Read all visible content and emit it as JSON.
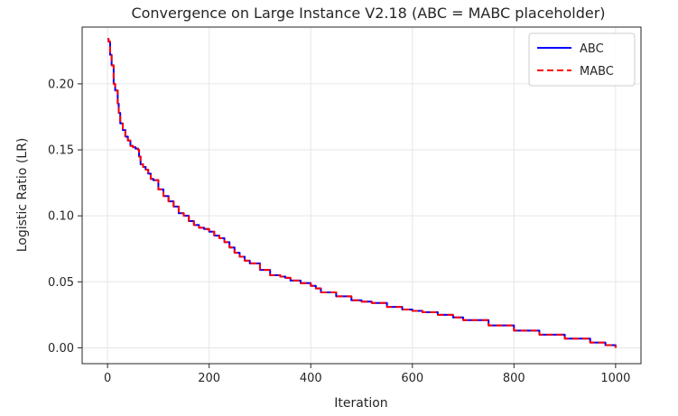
{
  "chart_data": {
    "type": "line",
    "title": "Convergence on Large Instance V2.18 (ABC = MABC placeholder)",
    "xlabel": "Iteration",
    "ylabel": "Logistic Ratio (LR)",
    "xlim": [
      -50,
      1050
    ],
    "ylim": [
      -0.012,
      0.243
    ],
    "xticks": [
      0,
      200,
      400,
      600,
      800,
      1000
    ],
    "yticks": [
      0.0,
      0.05,
      0.1,
      0.15,
      0.2
    ],
    "xtick_labels": [
      "0",
      "200",
      "400",
      "600",
      "800",
      "1000"
    ],
    "ytick_labels": [
      "0.00",
      "0.05",
      "0.10",
      "0.15",
      "0.20"
    ],
    "grid": true,
    "legend_position": "top-right",
    "series": [
      {
        "name": "ABC",
        "color": "#0000ff",
        "dash": "solid",
        "x": [
          0,
          2,
          5,
          8,
          12,
          15,
          20,
          22,
          25,
          30,
          35,
          40,
          45,
          50,
          55,
          60,
          62,
          65,
          70,
          75,
          80,
          85,
          90,
          95,
          100,
          110,
          120,
          130,
          140,
          150,
          160,
          170,
          180,
          190,
          200,
          210,
          220,
          230,
          240,
          250,
          260,
          270,
          280,
          300,
          320,
          340,
          350,
          360,
          380,
          400,
          410,
          420,
          450,
          480,
          500,
          520,
          550,
          580,
          600,
          620,
          650,
          680,
          700,
          750,
          800,
          850,
          900,
          950,
          980,
          1000
        ],
        "values": [
          0.234,
          0.232,
          0.222,
          0.214,
          0.2,
          0.195,
          0.185,
          0.178,
          0.17,
          0.165,
          0.16,
          0.157,
          0.153,
          0.152,
          0.151,
          0.15,
          0.145,
          0.139,
          0.137,
          0.135,
          0.132,
          0.128,
          0.127,
          0.127,
          0.12,
          0.115,
          0.111,
          0.107,
          0.102,
          0.1,
          0.096,
          0.093,
          0.091,
          0.09,
          0.088,
          0.085,
          0.083,
          0.08,
          0.076,
          0.072,
          0.069,
          0.066,
          0.064,
          0.059,
          0.055,
          0.054,
          0.053,
          0.051,
          0.049,
          0.047,
          0.045,
          0.042,
          0.039,
          0.036,
          0.035,
          0.034,
          0.031,
          0.029,
          0.028,
          0.027,
          0.025,
          0.023,
          0.021,
          0.017,
          0.013,
          0.01,
          0.007,
          0.004,
          0.002,
          0.0
        ]
      },
      {
        "name": "MABC",
        "color": "#ff0000",
        "dash": "dashed",
        "x": [
          0,
          2,
          5,
          8,
          12,
          15,
          20,
          22,
          25,
          30,
          35,
          40,
          45,
          50,
          55,
          60,
          62,
          65,
          70,
          75,
          80,
          85,
          90,
          95,
          100,
          110,
          120,
          130,
          140,
          150,
          160,
          170,
          180,
          190,
          200,
          210,
          220,
          230,
          240,
          250,
          260,
          270,
          280,
          300,
          320,
          340,
          350,
          360,
          380,
          400,
          410,
          420,
          450,
          480,
          500,
          520,
          550,
          580,
          600,
          620,
          650,
          680,
          700,
          750,
          800,
          850,
          900,
          950,
          980,
          1000
        ],
        "values": [
          0.234,
          0.232,
          0.222,
          0.214,
          0.2,
          0.195,
          0.185,
          0.178,
          0.17,
          0.165,
          0.16,
          0.157,
          0.153,
          0.152,
          0.151,
          0.15,
          0.145,
          0.139,
          0.137,
          0.135,
          0.132,
          0.128,
          0.127,
          0.127,
          0.12,
          0.115,
          0.111,
          0.107,
          0.102,
          0.1,
          0.096,
          0.093,
          0.091,
          0.09,
          0.088,
          0.085,
          0.083,
          0.08,
          0.076,
          0.072,
          0.069,
          0.066,
          0.064,
          0.059,
          0.055,
          0.054,
          0.053,
          0.051,
          0.049,
          0.047,
          0.045,
          0.042,
          0.039,
          0.036,
          0.035,
          0.034,
          0.031,
          0.029,
          0.028,
          0.027,
          0.025,
          0.023,
          0.021,
          0.017,
          0.013,
          0.01,
          0.007,
          0.004,
          0.002,
          0.0
        ]
      }
    ]
  }
}
